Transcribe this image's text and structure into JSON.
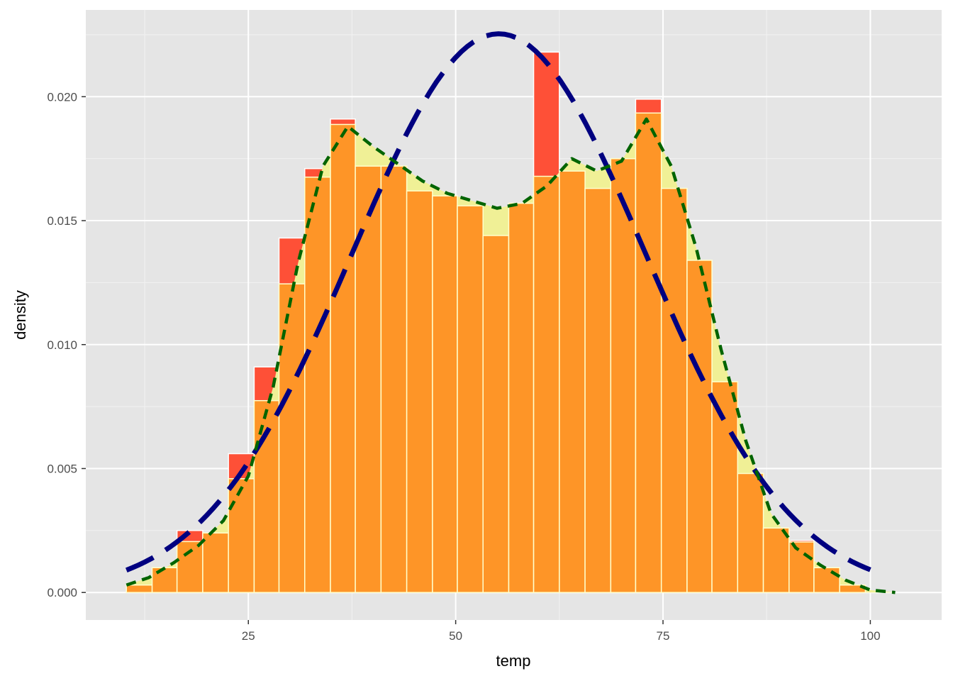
{
  "chart_data": {
    "type": "histogram",
    "xlabel": "temp",
    "ylabel": "density",
    "xlim": [
      5.4,
      108.6
    ],
    "ylim": [
      -0.00111,
      0.0235
    ],
    "x_ticks": [
      25,
      50,
      75,
      100
    ],
    "x_tick_labels": [
      "25",
      "50",
      "75",
      "100"
    ],
    "y_ticks": [
      0.0,
      0.005,
      0.01,
      0.015,
      0.02
    ],
    "y_tick_labels": [
      "0.000",
      "0.005",
      "0.010",
      "0.015",
      "0.020"
    ],
    "grid": true,
    "legend": "none",
    "panel_background": "#e5e5e5",
    "bins": [
      {
        "x0": 10.3,
        "x1": 13.4,
        "value": 0.0003
      },
      {
        "x0": 13.4,
        "x1": 16.4,
        "value": 0.001
      },
      {
        "x0": 16.4,
        "x1": 19.5,
        "value": 0.0025
      },
      {
        "x0": 19.5,
        "x1": 22.6,
        "value": 0.0024
      },
      {
        "x0": 22.6,
        "x1": 25.7,
        "value": 0.0056
      },
      {
        "x0": 25.7,
        "x1": 28.7,
        "value": 0.0091
      },
      {
        "x0": 28.7,
        "x1": 31.8,
        "value": 0.0143
      },
      {
        "x0": 31.8,
        "x1": 34.9,
        "value": 0.0171
      },
      {
        "x0": 34.9,
        "x1": 37.9,
        "value": 0.0191
      },
      {
        "x0": 37.9,
        "x1": 41.0,
        "value": 0.0172
      },
      {
        "x0": 41.0,
        "x1": 44.1,
        "value": 0.0172
      },
      {
        "x0": 44.1,
        "x1": 47.2,
        "value": 0.0162
      },
      {
        "x0": 47.2,
        "x1": 50.2,
        "value": 0.016
      },
      {
        "x0": 50.2,
        "x1": 53.3,
        "value": 0.0156
      },
      {
        "x0": 53.3,
        "x1": 56.4,
        "value": 0.0144
      },
      {
        "x0": 56.4,
        "x1": 59.4,
        "value": 0.0157
      },
      {
        "x0": 59.4,
        "x1": 62.5,
        "value": 0.0218
      },
      {
        "x0": 62.5,
        "x1": 65.6,
        "value": 0.017
      },
      {
        "x0": 65.6,
        "x1": 68.7,
        "value": 0.0163
      },
      {
        "x0": 68.7,
        "x1": 71.7,
        "value": 0.0175
      },
      {
        "x0": 71.7,
        "x1": 74.8,
        "value": 0.0199
      },
      {
        "x0": 74.8,
        "x1": 77.9,
        "value": 0.0163
      },
      {
        "x0": 77.9,
        "x1": 80.9,
        "value": 0.0134
      },
      {
        "x0": 80.9,
        "x1": 84.0,
        "value": 0.0085
      },
      {
        "x0": 84.0,
        "x1": 87.1,
        "value": 0.0048
      },
      {
        "x0": 87.1,
        "x1": 90.2,
        "value": 0.0026
      },
      {
        "x0": 90.2,
        "x1": 93.2,
        "value": 0.0021
      },
      {
        "x0": 93.2,
        "x1": 96.3,
        "value": 0.001
      },
      {
        "x0": 96.3,
        "x1": 99.4,
        "value": 0.0003
      }
    ],
    "kde_curve": {
      "x": [
        10.3,
        13,
        16,
        19,
        22,
        25,
        28,
        31,
        34,
        37,
        40,
        43,
        46,
        49,
        52,
        55,
        58,
        61,
        64,
        67,
        70,
        73,
        76,
        79,
        82,
        85,
        88,
        91,
        94,
        97,
        100,
        103
      ],
      "y": [
        0.0003,
        0.0006,
        0.0012,
        0.0019,
        0.0029,
        0.0047,
        0.0083,
        0.0133,
        0.0172,
        0.0188,
        0.018,
        0.0173,
        0.0166,
        0.0161,
        0.0158,
        0.0155,
        0.0157,
        0.0164,
        0.0175,
        0.017,
        0.0174,
        0.0191,
        0.0172,
        0.0139,
        0.0098,
        0.0061,
        0.0032,
        0.0018,
        0.0011,
        0.0005,
        0.0001,
        0.0
      ],
      "color": "#006400"
    },
    "normal_curve": {
      "mean": 55.2,
      "sd": 17.7,
      "x_range": [
        10.3,
        100
      ],
      "color": "#000080"
    },
    "colors": {
      "bin_fill": "#fe9527",
      "bin_excess": "#fe5037",
      "density_fill": "#f0f096",
      "bin_outline": "#ffffff"
    }
  }
}
